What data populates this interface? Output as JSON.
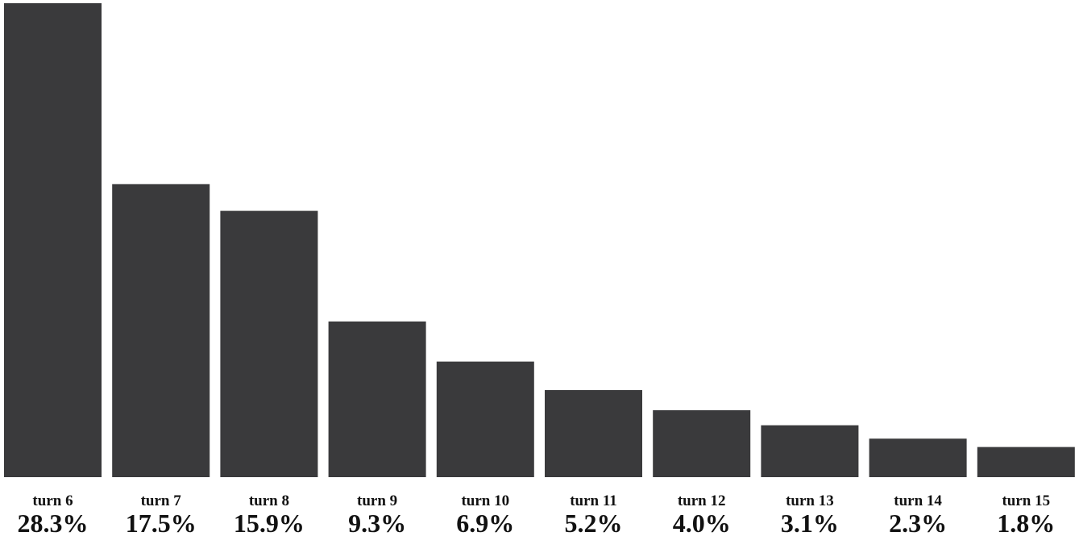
{
  "chart_data": {
    "type": "bar",
    "categories": [
      "turn 6",
      "turn 7",
      "turn 8",
      "turn 9",
      "turn 10",
      "turn 11",
      "turn 12",
      "turn 13",
      "turn 14",
      "turn 15"
    ],
    "values": [
      28.3,
      17.5,
      15.9,
      9.3,
      6.9,
      5.2,
      4.0,
      3.1,
      2.3,
      1.8
    ],
    "value_labels": [
      "28.3%",
      "17.5%",
      "15.9%",
      "9.3%",
      "6.9%",
      "5.2%",
      "4.0%",
      "3.1%",
      "2.3%",
      "1.8%"
    ],
    "unit": "%",
    "ylim": [
      0,
      28.3
    ],
    "grid": false,
    "legend": "none",
    "colors": {
      "bar": "#3a3a3c",
      "text": "#111111",
      "background": "#ffffff"
    }
  }
}
